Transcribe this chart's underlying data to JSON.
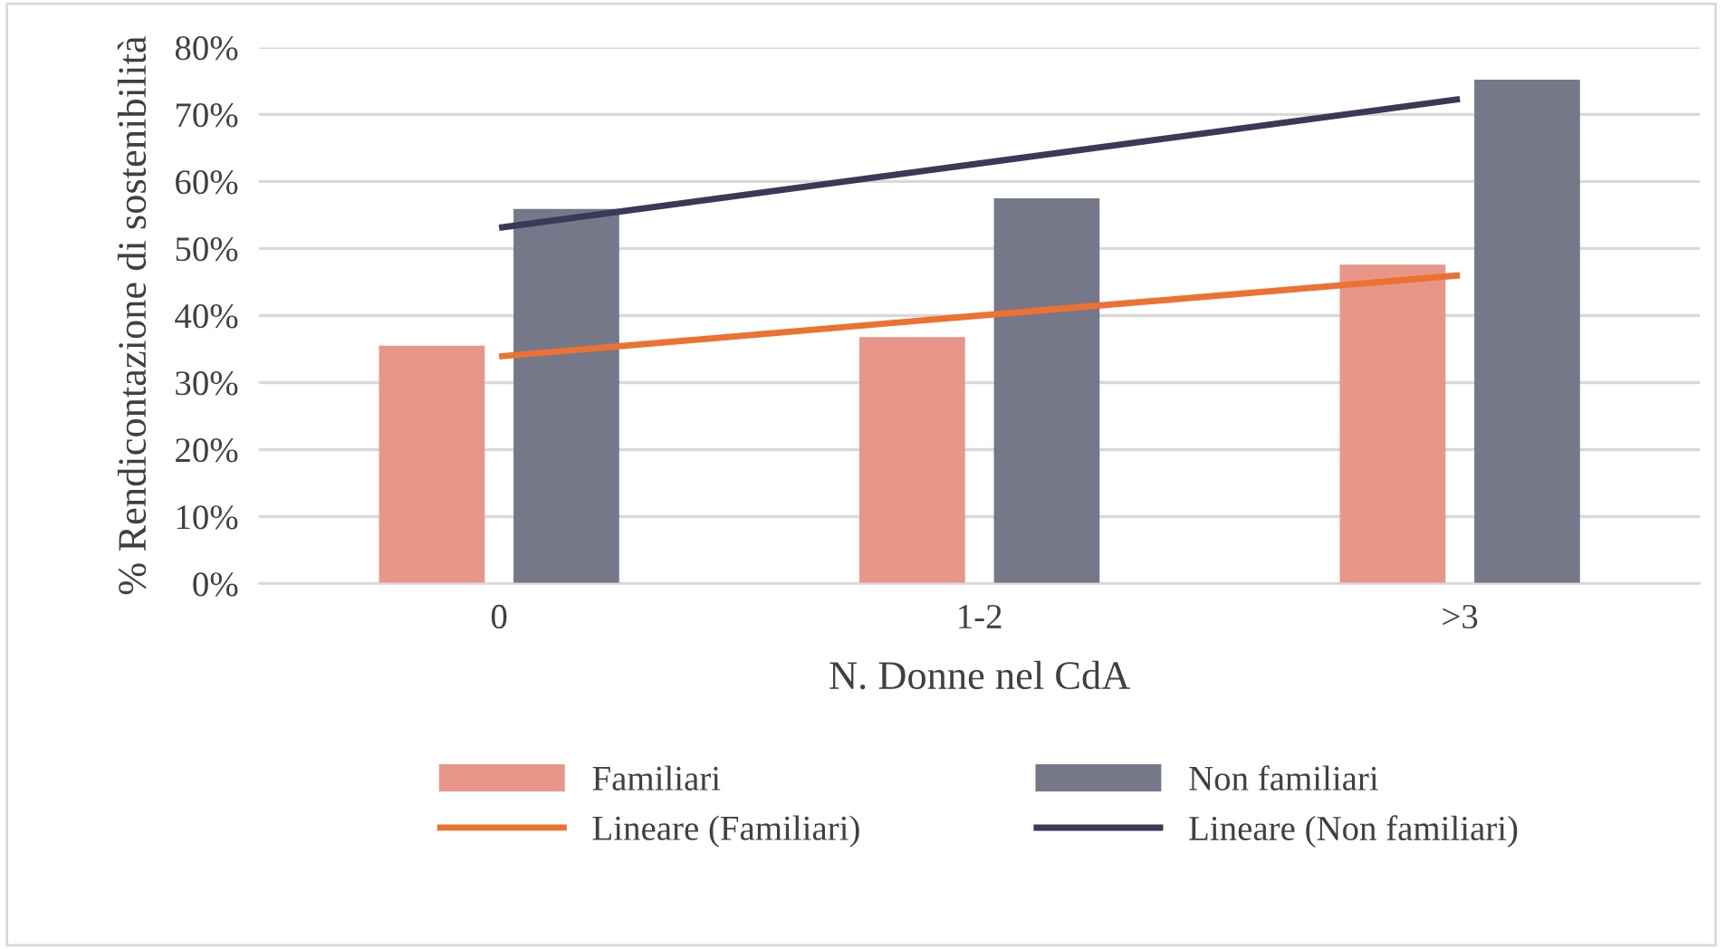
{
  "chart_data": {
    "type": "bar",
    "xlabel": "N. Donne nel CdA",
    "ylabel": "% Rendicontazione di sostenibilità",
    "categories": [
      "0",
      "1-2",
      ">3"
    ],
    "series": [
      {
        "name": "Familiari",
        "color": "#e9968a",
        "values": [
          35.5,
          36.8,
          47.6
        ]
      },
      {
        "name": "Non familiari",
        "color": "#757889",
        "values": [
          55.9,
          57.5,
          75.2
        ]
      },
      {
        "name": "Lineare (Familiari)",
        "type": "line",
        "color": "#ed7232",
        "values": [
          33.9,
          40.0,
          46.0
        ]
      },
      {
        "name": "Lineare (Non familiari)",
        "type": "line",
        "color": "#383a58",
        "values": [
          53.1,
          62.7,
          72.3
        ]
      }
    ],
    "ylim": [
      0,
      80
    ],
    "yticks": [
      {
        "value": 0,
        "label": "0%"
      },
      {
        "value": 10,
        "label": "10%"
      },
      {
        "value": 20,
        "label": "20%"
      },
      {
        "value": 30,
        "label": "30%"
      },
      {
        "value": 40,
        "label": "40%"
      },
      {
        "value": 50,
        "label": "50%"
      },
      {
        "value": 60,
        "label": "60%"
      },
      {
        "value": 70,
        "label": "70%"
      },
      {
        "value": 80,
        "label": "80%"
      }
    ],
    "grid": "y",
    "legend": "bottom"
  }
}
